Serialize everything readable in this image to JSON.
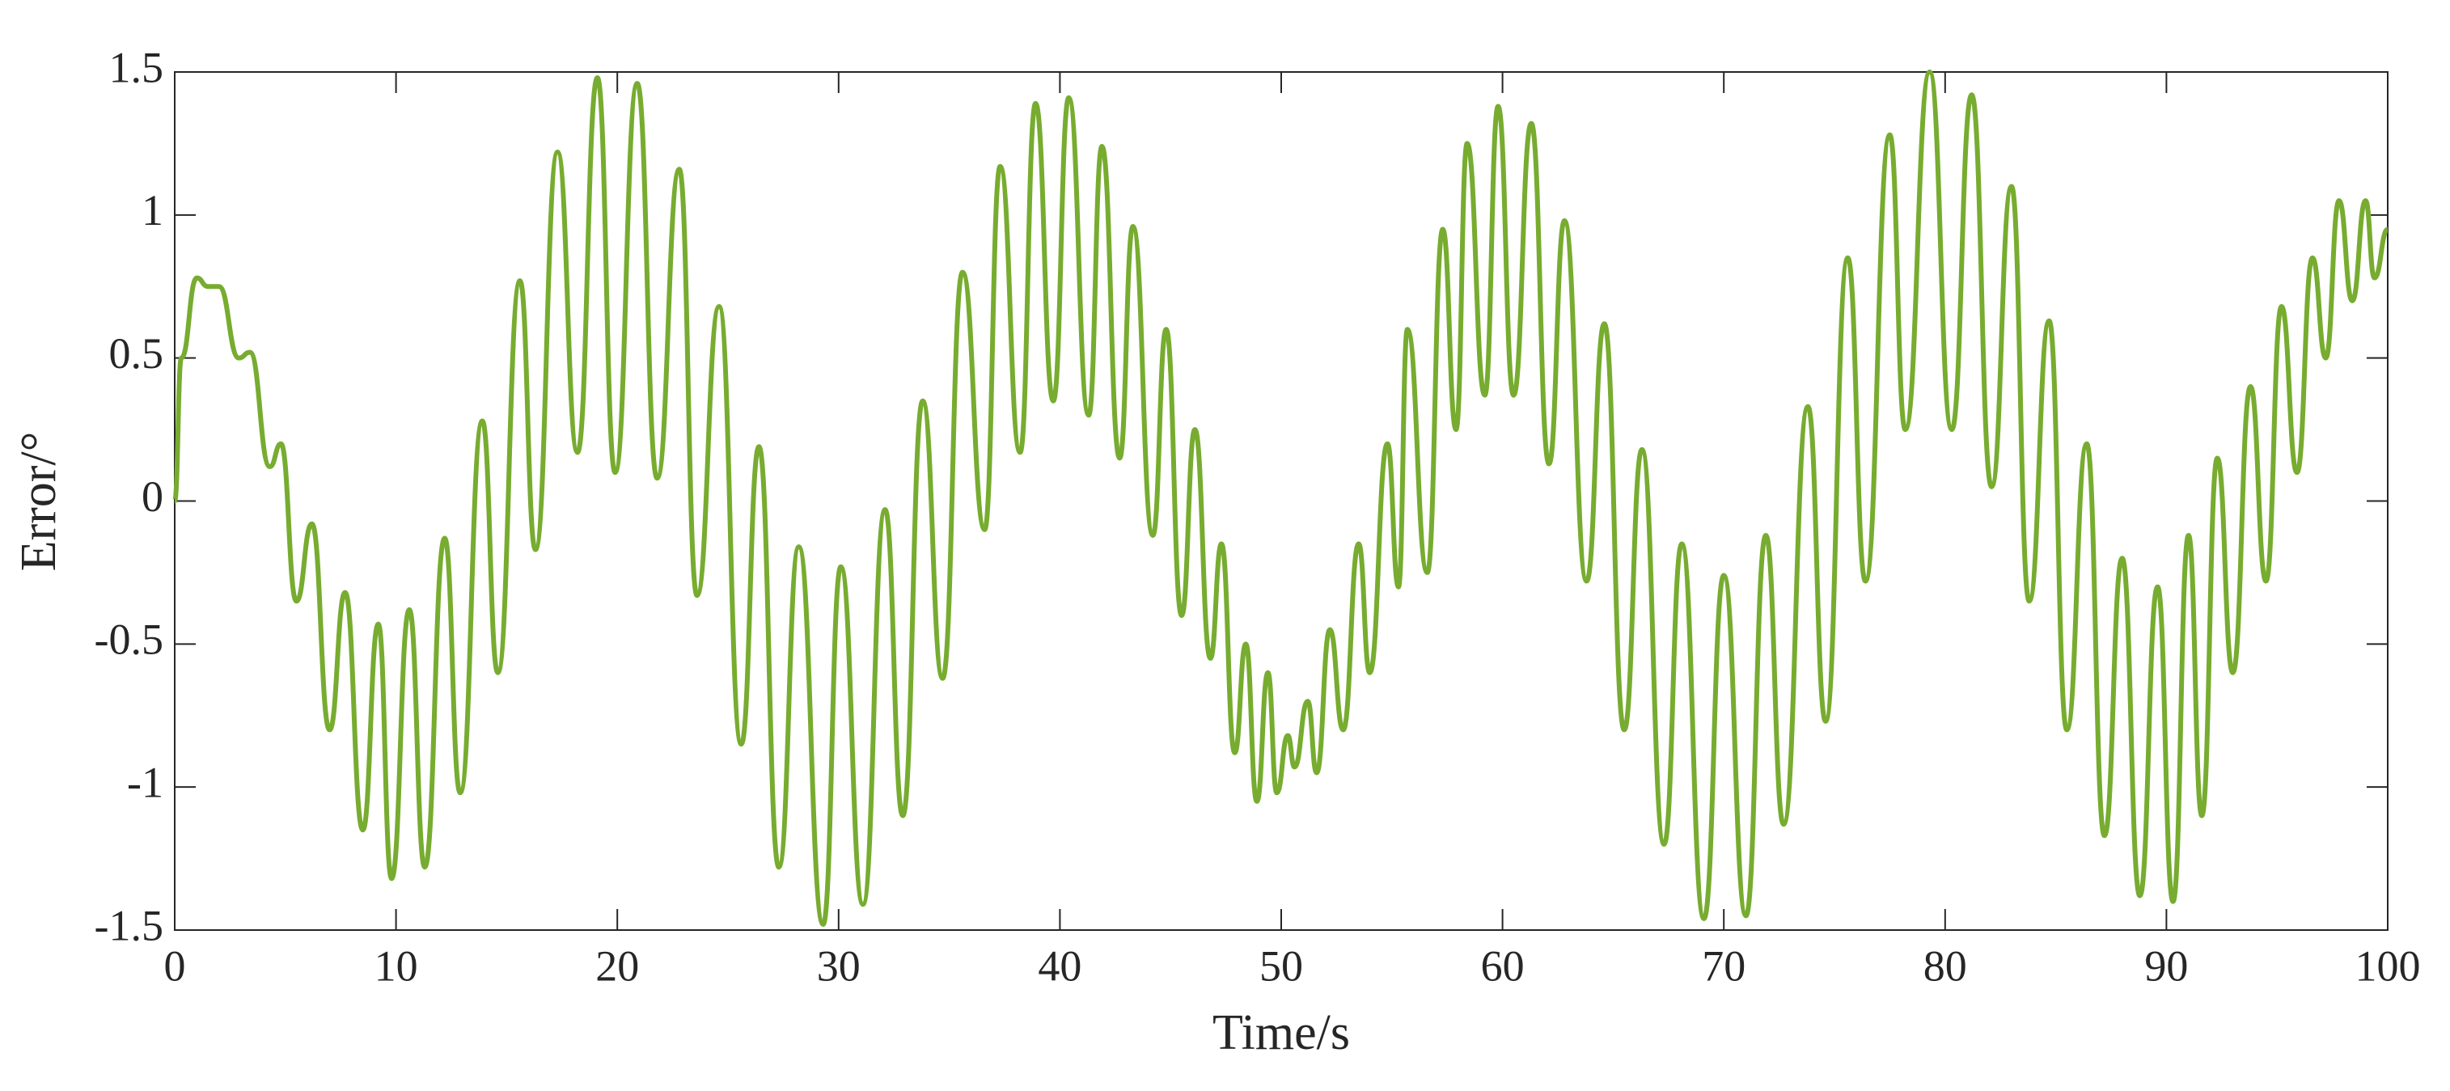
{
  "chart_data": {
    "type": "line",
    "xlabel": "Time/s",
    "ylabel": "Error/°",
    "color": "#77ac30",
    "x": [
      0,
      0.3,
      1,
      1.5,
      2,
      2.9,
      3.4,
      4.3,
      4.8,
      5.5,
      6.2,
      7,
      7.7,
      8.5,
      9.2,
      9.8,
      10.6,
      11.3,
      12.2,
      12.9,
      13.9,
      14.6,
      15.6,
      16.3,
      17.3,
      18.2,
      19.1,
      19.9,
      20.9,
      21.8,
      22.8,
      23.6,
      24.6,
      25.6,
      26.4,
      27.3,
      28.2,
      29.3,
      30.1,
      31.1,
      32.1,
      32.9,
      33.8,
      34.7,
      35.6,
      36.6,
      37.3,
      38.2,
      38.9,
      39.7,
      40.4,
      41.3,
      41.9,
      42.7,
      43.3,
      44.2,
      44.8,
      45.5,
      46.1,
      46.8,
      47.3,
      47.9,
      48.4,
      48.9,
      49.4,
      49.8,
      50.3,
      50.6,
      51.2,
      51.6,
      52.2,
      52.8,
      53.5,
      54,
      54.8,
      55.3,
      55.7,
      56.6,
      57.3,
      57.9,
      58.4,
      59.2,
      59.8,
      60.5,
      61.3,
      62.1,
      62.8,
      63.8,
      64.6,
      65.5,
      66.3,
      67.3,
      68.1,
      69.1,
      70,
      71,
      71.9,
      72.7,
      73.8,
      74.6,
      75.6,
      76.4,
      77.5,
      78.2,
      79.3,
      80.3,
      81.2,
      82.1,
      83,
      83.8,
      84.7,
      85.5,
      86.4,
      87.2,
      88,
      88.8,
      89.6,
      90.3,
      91,
      91.6,
      92.3,
      93,
      93.8,
      94.5,
      95.2,
      95.9,
      96.6,
      97.2,
      97.8,
      98.4,
      99,
      99.4,
      100
    ],
    "values": [
      0,
      0.5,
      0.78,
      0.75,
      0.75,
      0.5,
      0.52,
      0.12,
      0.2,
      -0.35,
      -0.08,
      -0.8,
      -0.32,
      -1.15,
      -0.43,
      -1.32,
      -0.38,
      -1.28,
      -0.13,
      -1.02,
      0.28,
      -0.6,
      0.77,
      -0.17,
      1.22,
      0.17,
      1.48,
      0.1,
      1.46,
      0.08,
      1.16,
      -0.33,
      0.68,
      -0.85,
      0.19,
      -1.28,
      -0.16,
      -1.48,
      -0.23,
      -1.41,
      -0.03,
      -1.1,
      0.35,
      -0.62,
      0.8,
      -0.1,
      1.17,
      0.17,
      1.39,
      0.35,
      1.41,
      0.3,
      1.24,
      0.15,
      0.96,
      -0.12,
      0.6,
      -0.4,
      0.25,
      -0.55,
      -0.15,
      -0.88,
      -0.5,
      -1.05,
      -0.6,
      -1.02,
      -0.82,
      -0.93,
      -0.7,
      -0.95,
      -0.45,
      -0.8,
      -0.15,
      -0.6,
      0.2,
      -0.3,
      0.6,
      -0.25,
      0.95,
      0.25,
      1.25,
      0.37,
      1.38,
      0.37,
      1.32,
      0.13,
      0.98,
      -0.28,
      0.62,
      -0.8,
      0.18,
      -1.2,
      -0.15,
      -1.46,
      -0.26,
      -1.45,
      -0.12,
      -1.13,
      0.33,
      -0.77,
      0.85,
      -0.28,
      1.28,
      0.25,
      1.5,
      0.25,
      1.42,
      0.05,
      1.1,
      -0.35,
      0.63,
      -0.8,
      0.2,
      -1.17,
      -0.2,
      -1.38,
      -0.3,
      -1.4,
      -0.12,
      -1.1,
      0.15,
      -0.6,
      0.4,
      -0.28,
      0.68,
      0.1,
      0.85,
      0.5,
      1.05,
      0.7,
      1.05,
      0.78,
      0.95
    ],
    "xlim": [
      0,
      100
    ],
    "xticks": [
      0,
      10,
      20,
      30,
      40,
      50,
      60,
      70,
      80,
      90,
      100
    ],
    "ylim": [
      -1.5,
      1.5
    ],
    "yticks": [
      -1.5,
      -1,
      -0.5,
      0,
      0.5,
      1,
      1.5
    ],
    "grid": false
  }
}
